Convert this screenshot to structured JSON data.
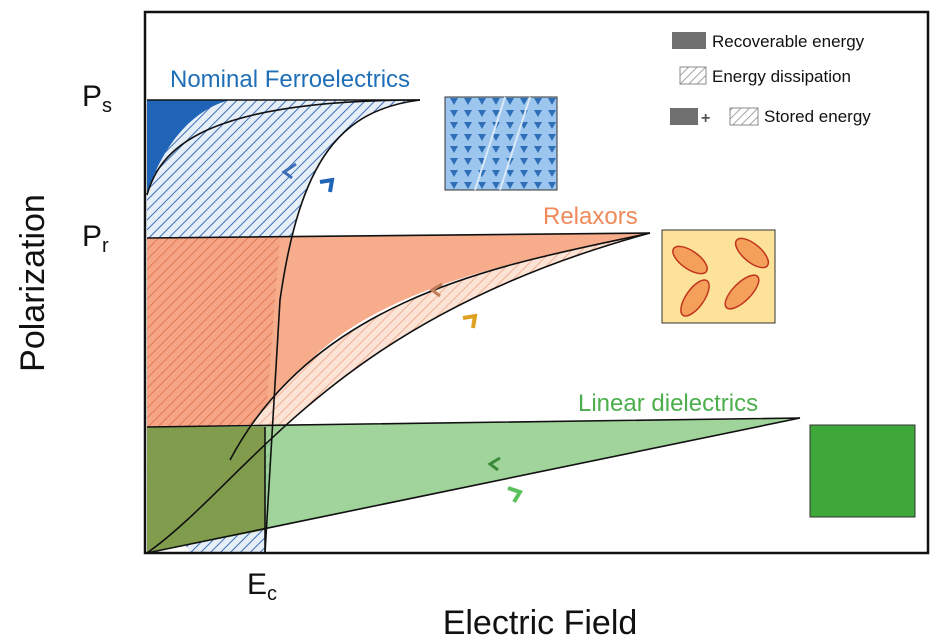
{
  "axes": {
    "y_label": "Polarization",
    "x_label": "Electric Field",
    "marks": [
      {
        "main": "P",
        "sub": "s"
      },
      {
        "main": "P",
        "sub": "r"
      },
      {
        "main": "E",
        "sub": "c"
      }
    ]
  },
  "curves": {
    "ferroelectric": "Nominal Ferroelectrics",
    "relaxor": "Relaxors",
    "linear": "Linear dielectrics"
  },
  "legend": {
    "recoverable": "Recoverable energy",
    "dissipation": "Energy dissipation",
    "stored": "Stored energy"
  }
}
